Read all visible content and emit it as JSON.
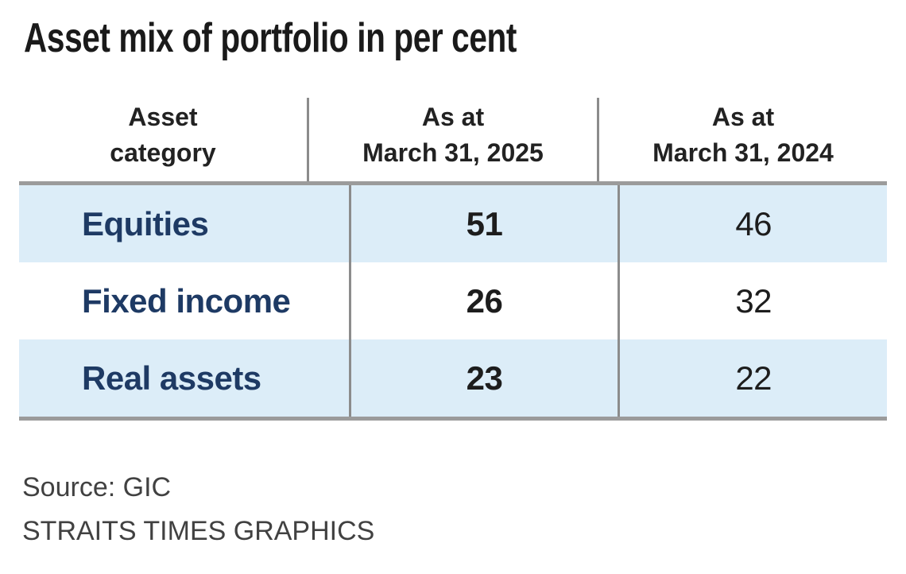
{
  "title": "Asset mix of portfolio in per cent",
  "table": {
    "header": {
      "col1": {
        "line1": "Asset",
        "line2": "category"
      },
      "col2": {
        "line1": "As at",
        "line2": "March 31, 2025"
      },
      "col3": {
        "line1": "As at",
        "line2": "March 31, 2024"
      }
    },
    "rows": [
      {
        "category": "Equities",
        "v2025": "51",
        "v2024": "46"
      },
      {
        "category": "Fixed income",
        "v2025": "26",
        "v2024": "32"
      },
      {
        "category": "Real assets",
        "v2025": "23",
        "v2024": "22"
      }
    ]
  },
  "footer": {
    "source": "Source: GIC",
    "credit": "STRAITS TIMES GRAPHICS"
  },
  "colors": {
    "row_highlight": "#dcedf8",
    "category_text": "#1e3a64",
    "heavy_rule": "#9b9b9b",
    "column_divider": "#8c8c8c",
    "title_text": "#1a1a1a"
  },
  "chart_data": {
    "type": "table",
    "title": "Asset mix of portfolio in per cent",
    "unit": "per cent",
    "columns": [
      "Asset category",
      "As at March 31, 2025",
      "As at March 31, 2024"
    ],
    "categories": [
      "Equities",
      "Fixed income",
      "Real assets"
    ],
    "series": [
      {
        "name": "As at March 31, 2025",
        "values": [
          51,
          26,
          23
        ]
      },
      {
        "name": "As at March 31, 2024",
        "values": [
          46,
          32,
          22
        ]
      }
    ],
    "source": "Source: GIC",
    "credit": "STRAITS TIMES GRAPHICS"
  }
}
